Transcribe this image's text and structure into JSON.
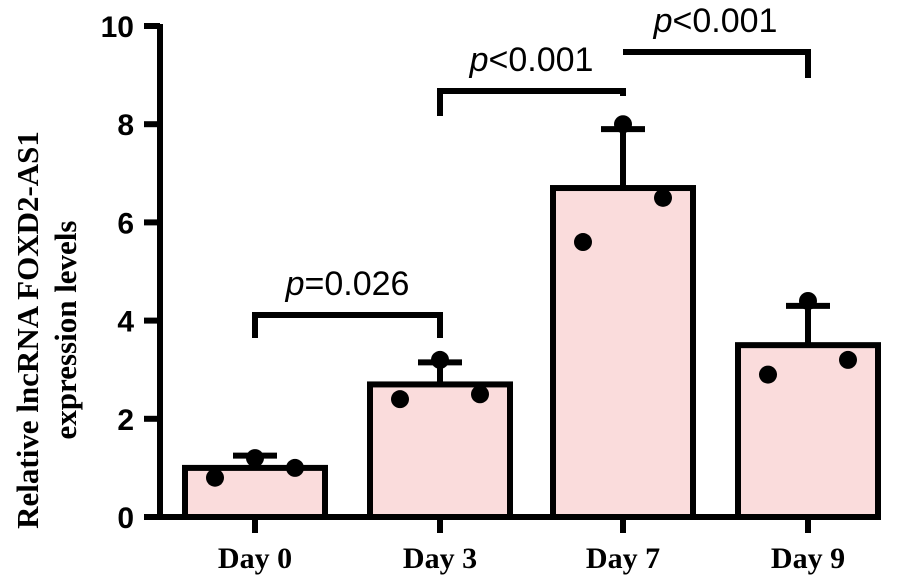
{
  "chart_data": {
    "type": "bar",
    "title": "",
    "xlabel": "",
    "ylabel_lines": [
      "Relative lncRNA FOXD2-AS1",
      "expression levels"
    ],
    "ylim": [
      0,
      10
    ],
    "yticks": [
      "0",
      "2",
      "4",
      "6",
      "8",
      "10"
    ],
    "categories": [
      "Day 0",
      "Day 3",
      "Day 7",
      "Day 9"
    ],
    "values": [
      1.0,
      2.7,
      6.7,
      3.5
    ],
    "error_upper": [
      1.25,
      3.15,
      7.9,
      4.3
    ],
    "points": [
      [
        0.8,
        1.2,
        1.0
      ],
      [
        2.4,
        3.2,
        2.5
      ],
      [
        5.6,
        8.0,
        6.5
      ],
      [
        2.9,
        4.4,
        3.2
      ]
    ],
    "bar_fill": "#fadcdc",
    "bar_stroke": "#000000",
    "annotations": [
      {
        "from": 0,
        "to": 1,
        "prefix": "p",
        "text": "=0.026"
      },
      {
        "from": 1,
        "to": 2,
        "prefix": "p",
        "text": "<0.001"
      },
      {
        "from": 2,
        "to": 3,
        "prefix": "p",
        "text": "<0.001"
      }
    ]
  }
}
